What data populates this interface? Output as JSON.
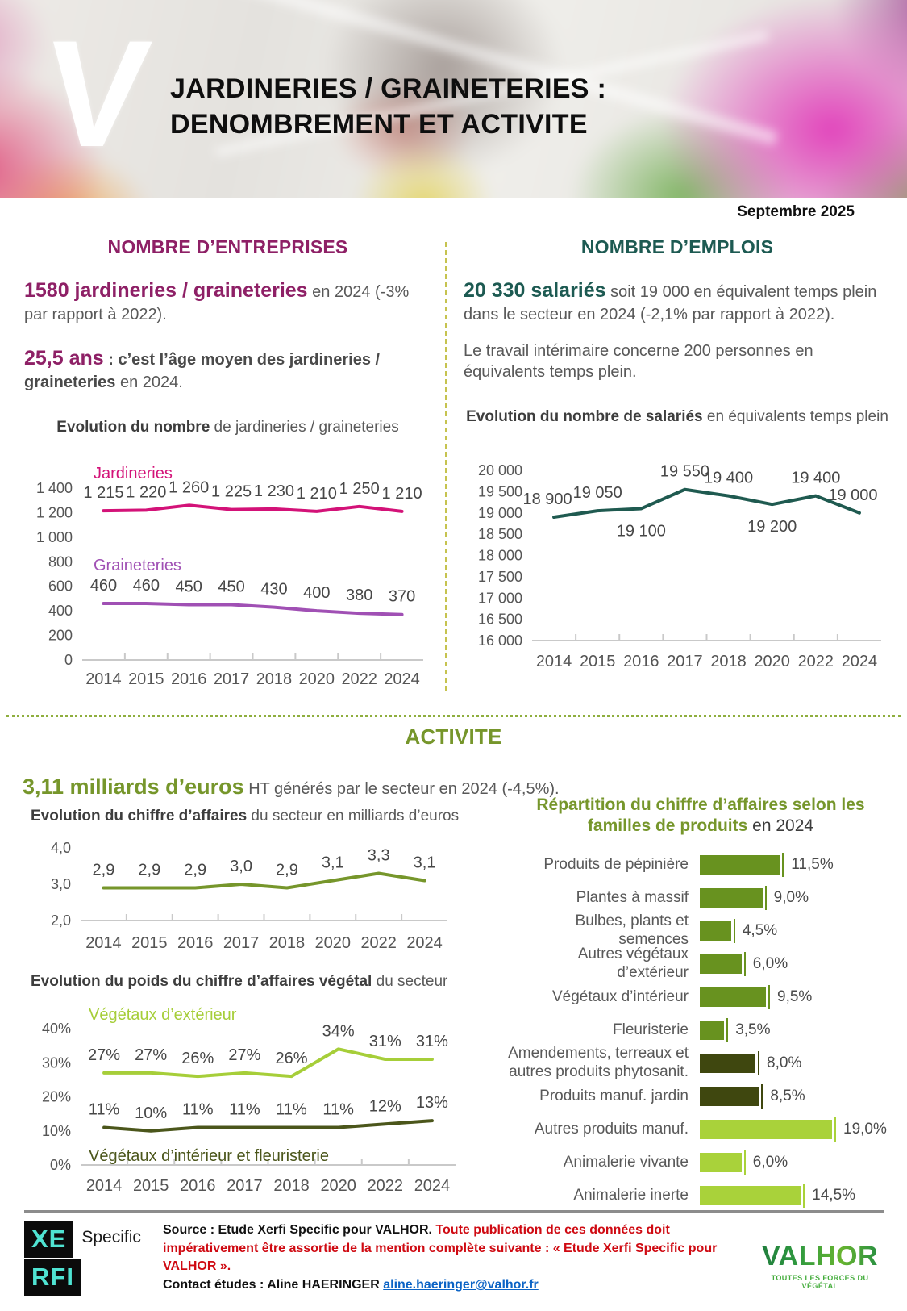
{
  "page": {
    "date": "Septembre 2025"
  },
  "hero": {
    "logo_letter": "V",
    "title_line1": "JARDINERIES / GRAINETERIES :",
    "title_line2": "DENOMBREMENT ET ACTIVITE"
  },
  "entreprises": {
    "heading": "NOMBRE D’ENTREPRISES",
    "stat1_big": "1580 jardineries / graineteries",
    "stat1_rest": " en 2024 (-3% par rapport à 2022).",
    "stat2_big": "25,5 ans",
    "stat2_bold": " : c’est l’âge moyen des jardineries / graineteries",
    "stat2_rest": " en 2024."
  },
  "emplois": {
    "heading": "NOMBRE D’EMPLOIS",
    "stat_big": "20 330 salariés",
    "stat_rest": " soit 19 000 en équivalent temps plein dans le secteur en 2024 (-2,1% par rapport à 2022).",
    "para2": "Le travail intérimaire concerne 200 personnes en équivalents temps plein."
  },
  "activite": {
    "heading": "ACTIVITE",
    "stat_big": "3,11 milliards d’euros",
    "stat_rest": " HT générés par le secteur en 2024 (-4,5%)."
  },
  "footer": {
    "xerfi_top": "XE",
    "xerfi_bottom": "RFI",
    "xerfi_suffix": "Specific",
    "source_black": "Source : Etude Xerfi Specific pour VALHOR.",
    "source_red": " Toute publication de ces données doit impérativement être assortie de la mention complète suivante : « Etude Xerfi Specific pour VALHOR ».",
    "contact_label": "Contact études : Aline HAERINGER",
    "contact_email": "aline.haeringer@valhor.fr",
    "valhor": "VALHOR",
    "valhor_tagline": "TOUTES LES FORCES DU VÉGÉTAL"
  },
  "chart_data": [
    {
      "id": "entreprises",
      "type": "line",
      "title_bold": "Evolution du nombre",
      "title_rest": " de jardineries / graineteries",
      "categories": [
        "2014",
        "2015",
        "2016",
        "2017",
        "2018",
        "2020",
        "2022",
        "2024"
      ],
      "ylim": [
        0,
        1400
      ],
      "yticks": [
        {
          "v": 1400,
          "t": "1 400"
        },
        {
          "v": 1200,
          "t": "1 200"
        },
        {
          "v": 1000,
          "t": "1 000"
        },
        {
          "v": 800,
          "t": "800"
        },
        {
          "v": 600,
          "t": "600"
        },
        {
          "v": 400,
          "t": "400"
        },
        {
          "v": 200,
          "t": "200"
        },
        {
          "v": 0,
          "t": "0"
        }
      ],
      "series": [
        {
          "name": "Jardineries",
          "color": "#d31278",
          "values": [
            1215,
            1220,
            1260,
            1225,
            1230,
            1210,
            1250,
            1210
          ],
          "labels": [
            "1 215",
            "1 220",
            "1 260",
            "1 225",
            "1 230",
            "1 210",
            "1 250",
            "1 210"
          ]
        },
        {
          "name": "Graineteries",
          "color": "#a050b4",
          "values": [
            460,
            460,
            450,
            450,
            430,
            400,
            380,
            370
          ],
          "labels": [
            "460",
            "460",
            "450",
            "450",
            "430",
            "400",
            "380",
            "370"
          ]
        }
      ]
    },
    {
      "id": "salaries",
      "type": "line",
      "title_bold": "Evolution du nombre de salariés",
      "title_rest": " en équivalents temps plein",
      "categories": [
        "2014",
        "2015",
        "2016",
        "2017",
        "2018",
        "2020",
        "2022",
        "2024"
      ],
      "ylim": [
        16000,
        20000
      ],
      "yticks": [
        {
          "v": 20000,
          "t": "20 000"
        },
        {
          "v": 19500,
          "t": "19 500"
        },
        {
          "v": 19000,
          "t": "19 000"
        },
        {
          "v": 18500,
          "t": "18 500"
        },
        {
          "v": 18000,
          "t": "18 000"
        },
        {
          "v": 17500,
          "t": "17 500"
        },
        {
          "v": 17000,
          "t": "17 000"
        },
        {
          "v": 16500,
          "t": "16 500"
        },
        {
          "v": 16000,
          "t": "16 000"
        }
      ],
      "series": [
        {
          "name": "Salariés",
          "color": "#1f5a50",
          "values": [
            18900,
            19050,
            19100,
            19550,
            19400,
            19200,
            19400,
            19000
          ],
          "labels": [
            "18 900",
            "19 050",
            "19 100",
            "19 550",
            "19 400",
            "19 200",
            "19 400",
            "19 000"
          ]
        }
      ]
    },
    {
      "id": "ca",
      "type": "line",
      "title_bold": "Evolution du chiffre d’affaires",
      "title_rest": " du secteur en milliards d’euros",
      "categories": [
        "2014",
        "2015",
        "2016",
        "2017",
        "2018",
        "2020",
        "2022",
        "2024"
      ],
      "ylim": [
        2,
        4
      ],
      "yticks": [
        {
          "v": 4,
          "t": "4,0"
        },
        {
          "v": 3,
          "t": "3,0"
        },
        {
          "v": 2,
          "t": "2,0"
        }
      ],
      "series": [
        {
          "name": "Chiffre d’affaires",
          "color": "#76962b",
          "values": [
            2.9,
            2.9,
            2.9,
            3.0,
            2.9,
            3.1,
            3.3,
            3.1
          ],
          "labels": [
            "2,9",
            "2,9",
            "2,9",
            "3,0",
            "2,9",
            "3,1",
            "3,3",
            "3,1"
          ]
        }
      ]
    },
    {
      "id": "poids",
      "type": "line",
      "title_bold": "Evolution du poids du chiffre d’affaires végétal",
      "title_rest": " du secteur",
      "categories": [
        "2014",
        "2015",
        "2016",
        "2017",
        "2018",
        "2020",
        "2022",
        "2024"
      ],
      "ylim": [
        0,
        40
      ],
      "yticks": [
        {
          "v": 40,
          "t": "40%"
        },
        {
          "v": 30,
          "t": "30%"
        },
        {
          "v": 20,
          "t": "20%"
        },
        {
          "v": 10,
          "t": "10%"
        },
        {
          "v": 0,
          "t": "0%"
        }
      ],
      "series": [
        {
          "name": "Végétaux d’extérieur",
          "color": "#a6ce39",
          "values": [
            27,
            27,
            26,
            27,
            26,
            34,
            31,
            31
          ],
          "labels": [
            "27%",
            "27%",
            "26%",
            "27%",
            "26%",
            "34%",
            "31%",
            "31%"
          ]
        },
        {
          "name": "Végétaux d’intérieur et fleuristerie",
          "color": "#4b561b",
          "values": [
            11,
            10,
            11,
            11,
            11,
            11,
            12,
            13
          ],
          "labels": [
            "11%",
            "10%",
            "11%",
            "11%",
            "11%",
            "11%",
            "12%",
            "13%"
          ]
        }
      ]
    },
    {
      "id": "repartition",
      "type": "bar",
      "title_bold": "Répartition du chiffre d’affaires selon les familles de produits",
      "title_rest": " en 2024",
      "max_value": 19,
      "items": [
        {
          "label": "Produits de pépinière",
          "value": 11.5,
          "display": "11,5%",
          "color": "#68921f"
        },
        {
          "label": "Plantes à massif",
          "value": 9,
          "display": "9,0%",
          "color": "#68921f"
        },
        {
          "label": "Bulbes, plants et semences",
          "value": 4.5,
          "display": "4,5%",
          "color": "#68921f"
        },
        {
          "label": "Autres végétaux d’extérieur",
          "value": 6,
          "display": "6,0%",
          "color": "#68921f"
        },
        {
          "label": "Végétaux d’intérieur",
          "value": 9.5,
          "display": "9,5%",
          "color": "#68921f"
        },
        {
          "label": "Fleuristerie",
          "value": 3.5,
          "display": "3,5%",
          "color": "#68921f"
        },
        {
          "label": "Amendements, terreaux et autres produits phytosanit.",
          "value": 8,
          "display": "8,0%",
          "color": "#3f470f"
        },
        {
          "label": "Produits manuf. jardin",
          "value": 8.5,
          "display": "8,5%",
          "color": "#3f470f"
        },
        {
          "label": "Autres produits manuf.",
          "value": 19,
          "display": "19,0%",
          "color": "#a9d23a"
        },
        {
          "label": "Animalerie vivante",
          "value": 6,
          "display": "6,0%",
          "color": "#a9d23a"
        },
        {
          "label": "Animalerie inerte",
          "value": 14.5,
          "display": "14,5%",
          "color": "#a9d23a"
        }
      ]
    }
  ]
}
